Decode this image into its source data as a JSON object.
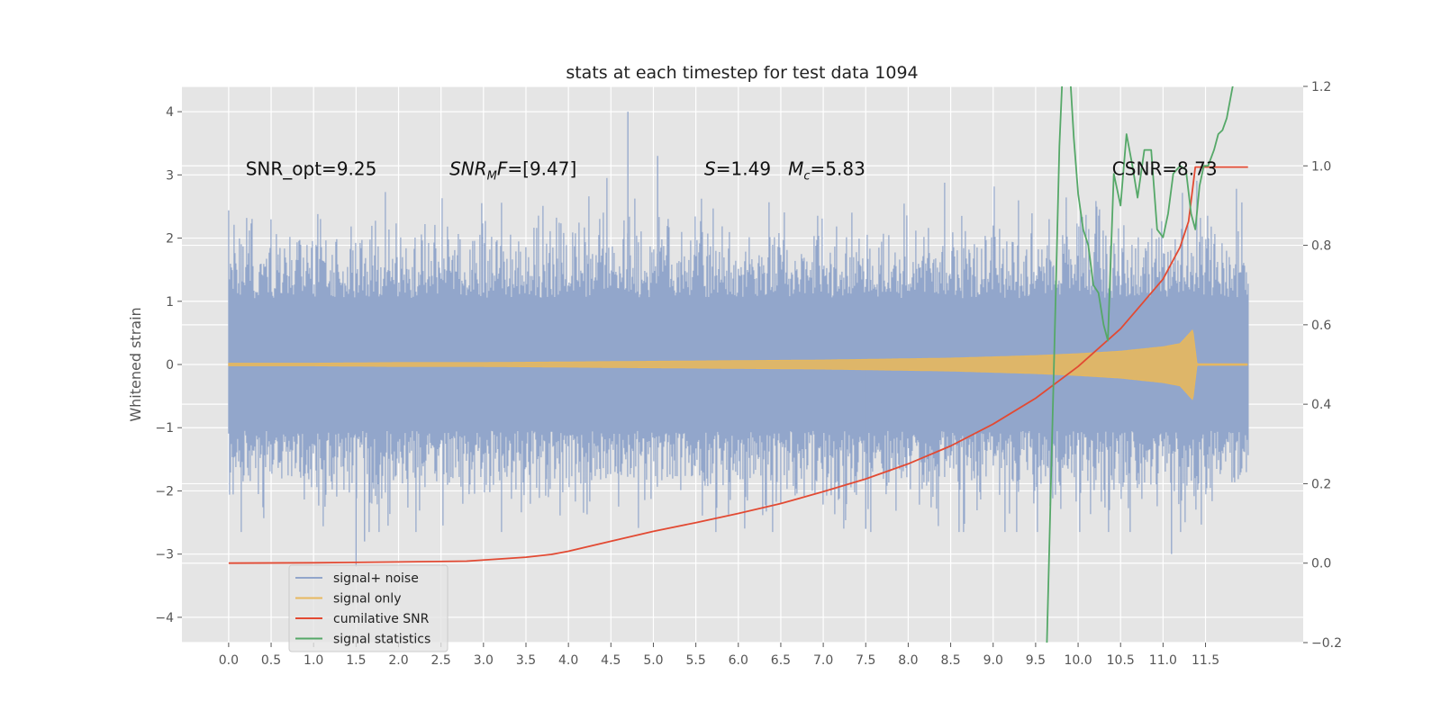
{
  "chart_data": {
    "type": "line",
    "title": "stats at each timestep for test data 1094",
    "xlabel": "",
    "ylabel": "Whitened strain",
    "y2label": "",
    "xlim": [
      -0.55,
      12.65
    ],
    "ylim": [
      -4.4,
      4.4
    ],
    "y2lim": [
      -0.2,
      1.2
    ],
    "x_ticks": [
      0.0,
      0.5,
      1.0,
      1.5,
      2.0,
      2.5,
      3.0,
      3.5,
      4.0,
      4.5,
      5.0,
      5.5,
      6.0,
      6.5,
      7.0,
      7.5,
      8.0,
      8.5,
      9.0,
      9.5,
      10.0,
      10.5,
      11.0,
      11.5
    ],
    "x_tick_labels": [
      "0.0",
      "0.5",
      "1.0",
      "1.5",
      "2.0",
      "2.5",
      "3.0",
      "3.5",
      "4.0",
      "4.5",
      "5.0",
      "5.5",
      "6.0",
      "6.5",
      "7.0",
      "7.5",
      "8.0",
      "8.5",
      "9.0",
      "9.5",
      "10.0",
      "10.5",
      "11.0",
      "11.5"
    ],
    "y_ticks": [
      -4,
      -3,
      -2,
      -1,
      0,
      1,
      2,
      3,
      4
    ],
    "y_tick_labels": [
      "−4",
      "−3",
      "−2",
      "−1",
      "0",
      "1",
      "2",
      "3",
      "4"
    ],
    "y2_ticks": [
      -0.2,
      0.0,
      0.2,
      0.4,
      0.6,
      0.8,
      1.0,
      1.2
    ],
    "y2_tick_labels": [
      "−0.2",
      "0.0",
      "0.2",
      "0.4",
      "0.6",
      "0.8",
      "1.0",
      "1.2"
    ],
    "grid": true,
    "legend_position": "lower-left",
    "annotations": [
      {
        "text": "SNR_opt=9.25",
        "x": 0.2,
        "y": 3.1
      },
      {
        "text": "SNR_MF=[9.47]",
        "x": 2.6,
        "y": 3.1
      },
      {
        "text": "S=1.49   M_c=5.83",
        "x": 5.6,
        "y": 3.1
      },
      {
        "text": "CSNR=8.73",
        "x": 10.4,
        "y": 3.1
      }
    ],
    "annotation_parts": {
      "snr_mf_prefix": "SNR",
      "snr_mf_sub": "M",
      "snr_mf_f": "F",
      "snr_mf_value": "=[9.47]",
      "s_symbol": "S",
      "s_value": "=1.49",
      "mc_symbol": "M",
      "mc_sub": "c",
      "mc_value": "=5.83"
    },
    "series": [
      {
        "name": "signal+ noise",
        "axis": "left",
        "color": "#92a6cb",
        "description_values": "noise-like whitened strain from x=0.0 to x=12.0, amplitude mostly within about -2.6..2.9",
        "x_range": [
          0.0,
          12.0
        ],
        "envelope_low": -2.2,
        "envelope_high": 2.2,
        "peaks": [
          {
            "x": 4.7,
            "y": 4.0
          },
          {
            "x": 5.05,
            "y": 3.3
          },
          {
            "x": 1.5,
            "y": -3.2
          },
          {
            "x": 1.6,
            "y": -2.8
          },
          {
            "x": 11.1,
            "y": -3.0
          },
          {
            "x": 7.5,
            "y": -2.6
          }
        ]
      },
      {
        "name": "signal only",
        "axis": "left",
        "color": "#e7b85e",
        "x": [
          0.0,
          1.0,
          2.0,
          3.0,
          4.0,
          5.0,
          6.0,
          7.0,
          8.0,
          8.5,
          9.0,
          9.5,
          10.0,
          10.5,
          11.0,
          11.2,
          11.35,
          11.4,
          12.0
        ],
        "amplitude": [
          0.02,
          0.02,
          0.03,
          0.03,
          0.04,
          0.05,
          0.06,
          0.07,
          0.09,
          0.1,
          0.12,
          0.14,
          0.17,
          0.21,
          0.28,
          0.33,
          0.55,
          0.0,
          0.0
        ]
      },
      {
        "name": "cumilative SNR",
        "axis": "right",
        "color": "#e24a33",
        "x": [
          0.0,
          1.0,
          2.0,
          2.8,
          3.5,
          3.8,
          4.0,
          4.5,
          5.0,
          5.5,
          6.0,
          6.5,
          7.0,
          7.5,
          8.0,
          8.5,
          9.0,
          9.5,
          10.0,
          10.5,
          11.0,
          11.2,
          11.3,
          11.38,
          11.6,
          12.0
        ],
        "values": [
          0.0,
          0.001,
          0.003,
          0.005,
          0.015,
          0.022,
          0.03,
          0.055,
          0.08,
          0.102,
          0.125,
          0.15,
          0.18,
          0.212,
          0.25,
          0.295,
          0.35,
          0.415,
          0.495,
          0.59,
          0.715,
          0.795,
          0.86,
          0.997,
          0.997,
          0.997
        ]
      },
      {
        "name": "signal statistics",
        "axis": "right",
        "color": "#55a868",
        "x": [
          9.63,
          9.68,
          9.73,
          9.78,
          9.82,
          9.86,
          9.9,
          9.95,
          10.0,
          10.06,
          10.12,
          10.18,
          10.24,
          10.3,
          10.35,
          10.42,
          10.5,
          10.57,
          10.64,
          10.7,
          10.78,
          10.86,
          10.93,
          11.0,
          11.06,
          11.12,
          11.2,
          11.27,
          11.33,
          11.38,
          11.43,
          11.48,
          11.53,
          11.6,
          11.65,
          11.7,
          11.75,
          11.82,
          11.9
        ],
        "values": [
          -0.22,
          0.2,
          0.62,
          1.05,
          1.25,
          1.3,
          1.25,
          1.07,
          0.93,
          0.84,
          0.8,
          0.7,
          0.68,
          0.6,
          0.56,
          0.98,
          0.9,
          1.08,
          1.0,
          0.92,
          1.04,
          1.04,
          0.84,
          0.82,
          0.88,
          0.98,
          1.0,
          0.99,
          0.88,
          0.84,
          0.95,
          1.0,
          1.0,
          1.04,
          1.08,
          1.09,
          1.12,
          1.2,
          1.23
        ]
      }
    ],
    "legend": [
      {
        "label": "signal+ noise",
        "color": "#92a6cb"
      },
      {
        "label": "signal only",
        "color": "#e7b85e"
      },
      {
        "label": "cumilative SNR",
        "color": "#e24a33"
      },
      {
        "label": "signal statistics",
        "color": "#55a868"
      }
    ]
  }
}
